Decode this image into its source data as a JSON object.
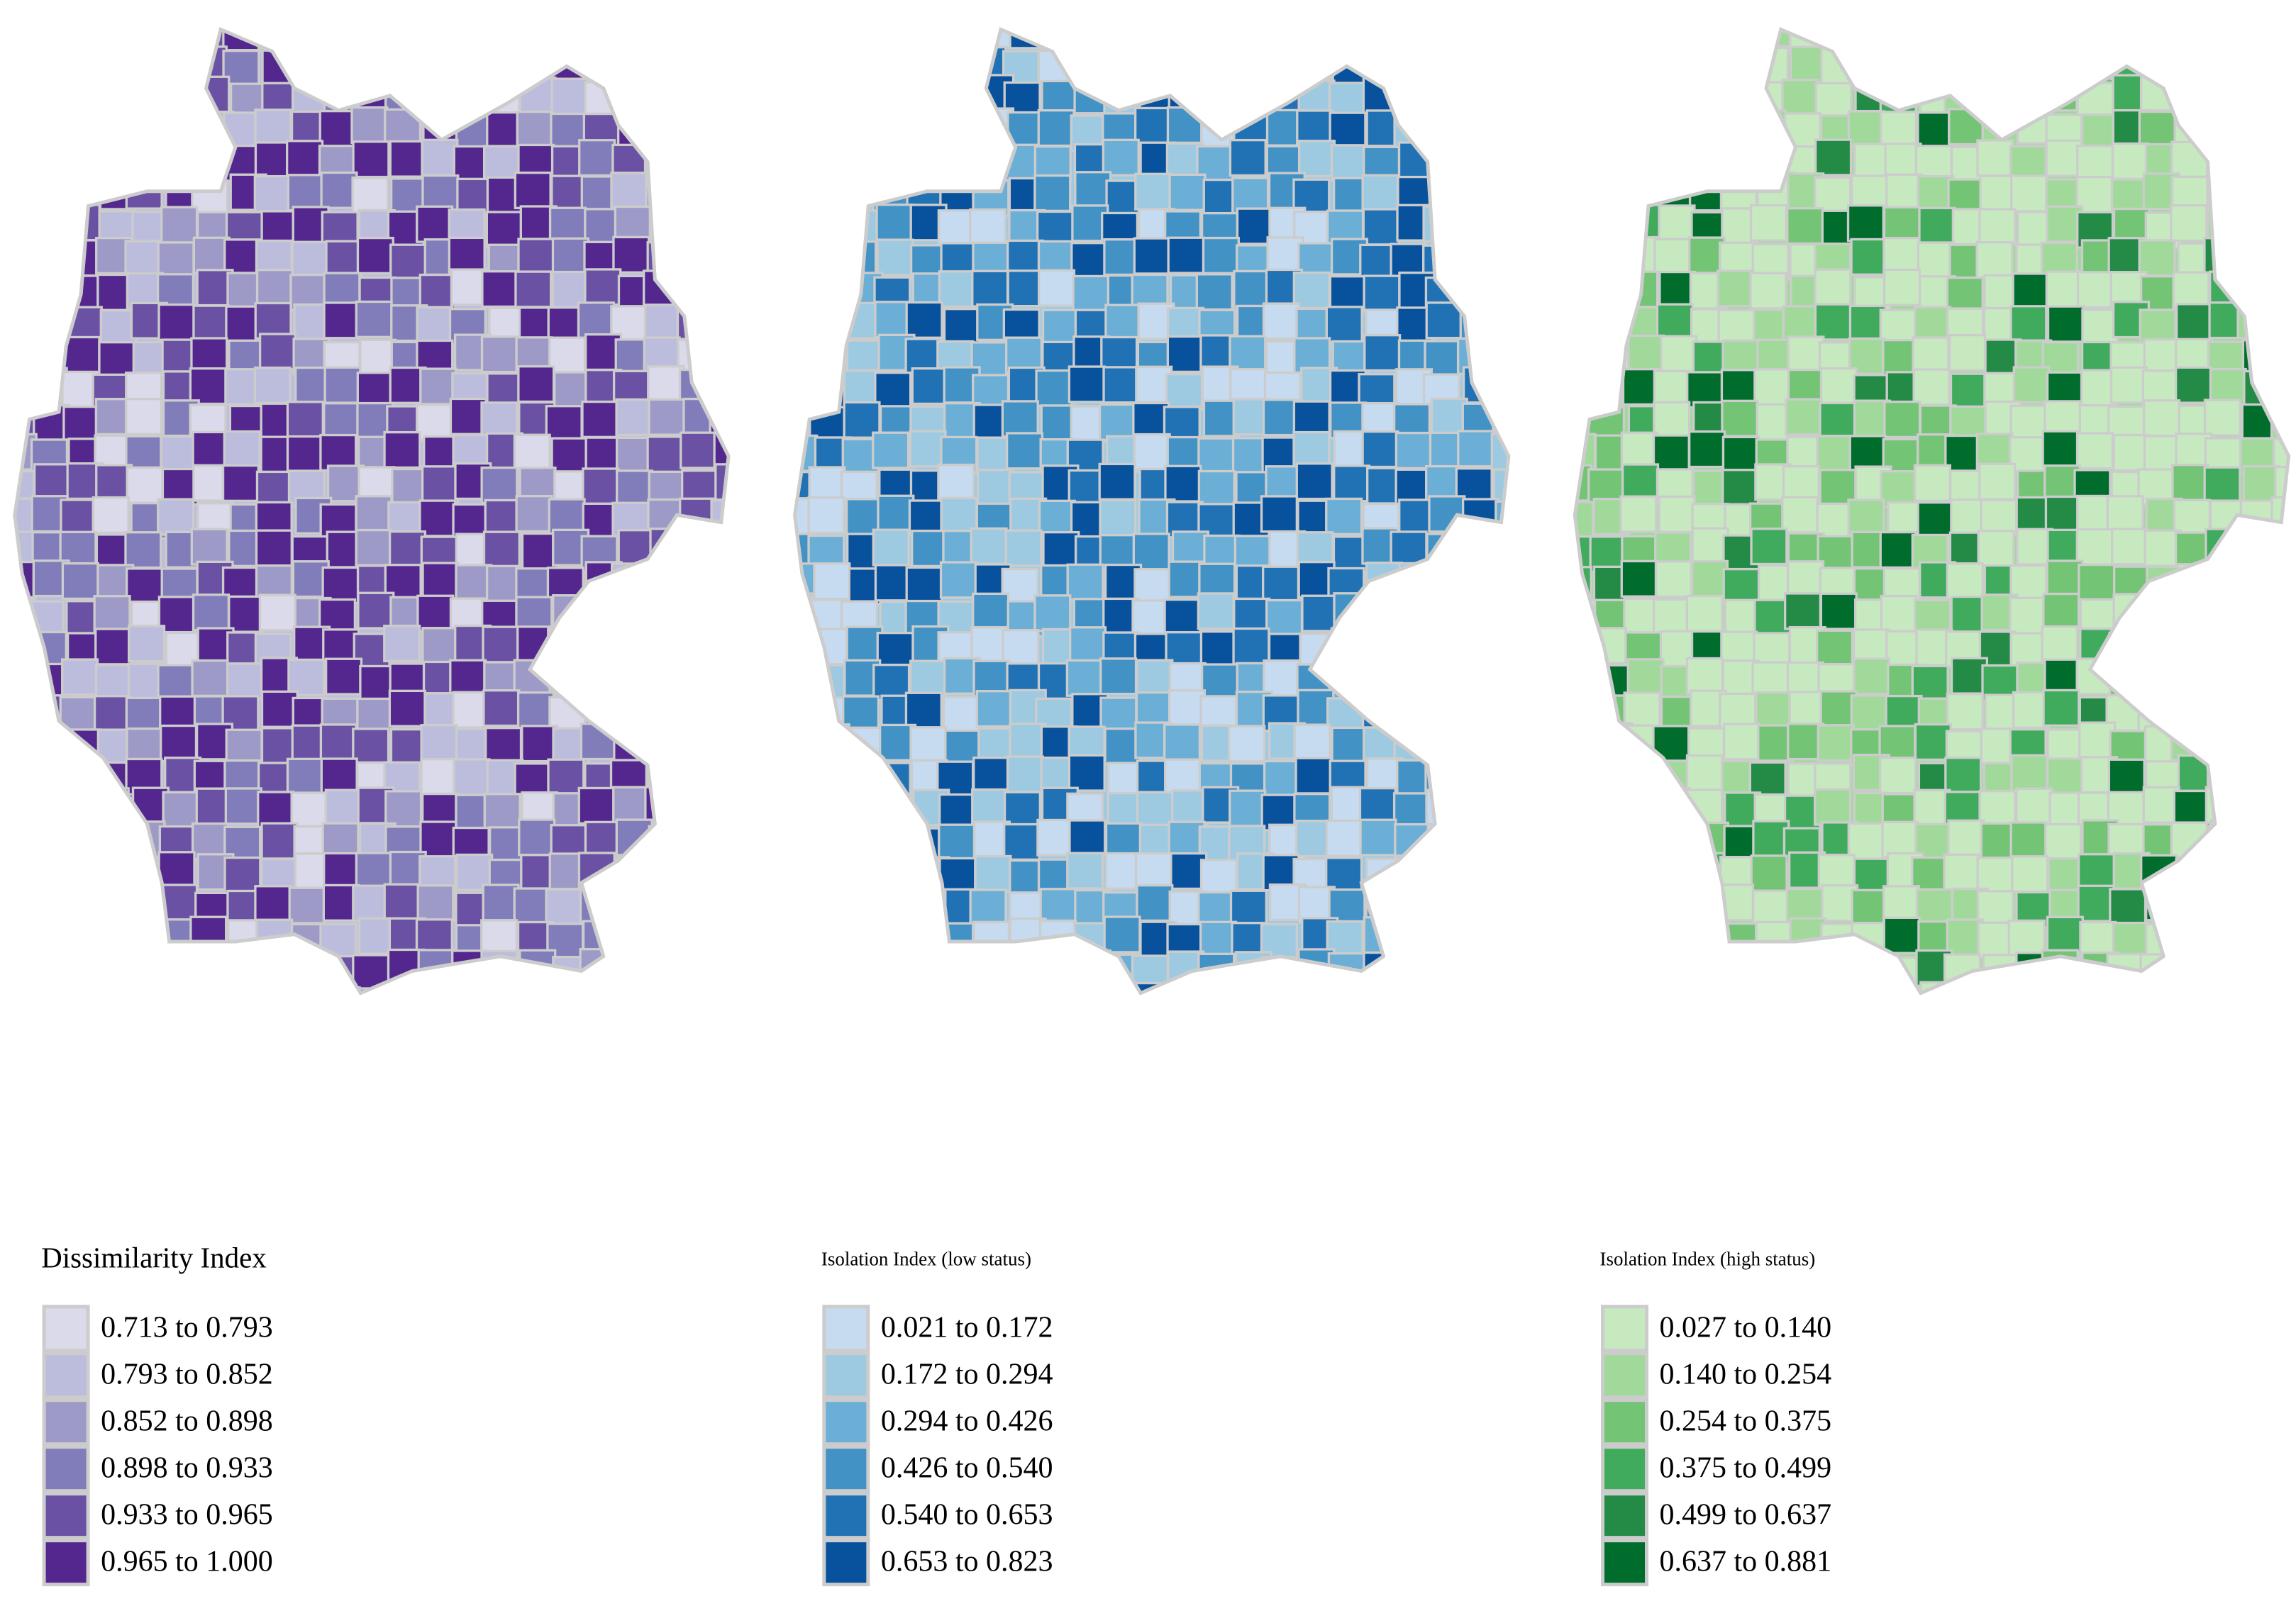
{
  "maps": [
    {
      "legend": {
        "title": "Dissimilarity Index",
        "entries": [
          {
            "label": "0.713 to 0.793",
            "color": "#dadaeb"
          },
          {
            "label": "0.793 to 0.852",
            "color": "#bcbddc"
          },
          {
            "label": "0.852 to 0.898",
            "color": "#9e9ac8"
          },
          {
            "label": "0.898 to 0.933",
            "color": "#807dba"
          },
          {
            "label": "0.933 to 0.965",
            "color": "#6a51a3"
          },
          {
            "label": "0.965 to 1.000",
            "color": "#54278f"
          }
        ]
      }
    },
    {
      "legend": {
        "title": "Isolation Index (low status)",
        "entries": [
          {
            "label": "0.021 to 0.172",
            "color": "#c6dbef"
          },
          {
            "label": "0.172 to 0.294",
            "color": "#9ecae1"
          },
          {
            "label": "0.294 to 0.426",
            "color": "#6baed6"
          },
          {
            "label": "0.426 to 0.540",
            "color": "#4292c6"
          },
          {
            "label": "0.540 to 0.653",
            "color": "#2171b5"
          },
          {
            "label": "0.653 to 0.823",
            "color": "#08519c"
          }
        ]
      }
    },
    {
      "legend": {
        "title": "Isolation Index (high status)",
        "entries": [
          {
            "label": "0.027 to 0.140",
            "color": "#c7e9c0"
          },
          {
            "label": "0.140 to 0.254",
            "color": "#a1d99b"
          },
          {
            "label": "0.254 to 0.375",
            "color": "#74c476"
          },
          {
            "label": "0.375 to 0.499",
            "color": "#41ab5d"
          },
          {
            "label": "0.499 to 0.637",
            "color": "#238b45"
          },
          {
            "label": "0.637 to 0.881",
            "color": "#006d2c"
          }
        ]
      }
    }
  ]
}
